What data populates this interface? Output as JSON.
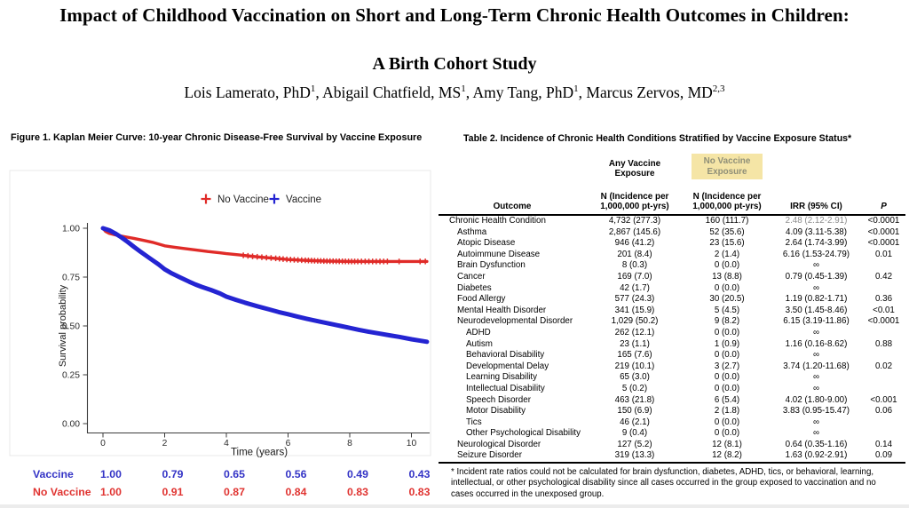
{
  "header": {
    "title_line1": "Impact of Childhood Vaccination on Short and Long-Term Chronic Health Outcomes in Children:",
    "title_line2": "A Birth Cohort Study",
    "authors": [
      {
        "text": "Lois Lamerato, PhD",
        "sup": "1"
      },
      {
        "text": ", Abigail Chatfield, MS",
        "sup": "1"
      },
      {
        "text": ", Amy Tang, PhD",
        "sup": "1"
      },
      {
        "text": ", Marcus Zervos, MD",
        "sup": "2,3"
      }
    ]
  },
  "figure": {
    "caption": "Figure 1. Kaplan Meier Curve: 10-year Chronic Disease-Free Survival by Vaccine Exposure",
    "risk_table": {
      "rows": [
        {
          "label": "Vaccine",
          "color": "#3434C6",
          "values": [
            "1.00",
            "0.79",
            "0.65",
            "0.56",
            "0.49",
            "0.43"
          ]
        },
        {
          "label": "No Vaccine",
          "color": "#E03431",
          "values": [
            "1.00",
            "0.91",
            "0.87",
            "0.84",
            "0.83",
            "0.83"
          ]
        }
      ]
    }
  },
  "chart_data": {
    "type": "line",
    "title": "",
    "xlabel": "Time (years)",
    "ylabel": "Survival probability",
    "xlim": [
      0,
      10.5
    ],
    "ylim": [
      0,
      1.0
    ],
    "grid": false,
    "legend_position": "top-center",
    "xticks": [
      {
        "v": 0,
        "label": "0"
      },
      {
        "v": 2,
        "label": "2"
      },
      {
        "v": 4,
        "label": "4"
      },
      {
        "v": 6,
        "label": "6"
      },
      {
        "v": 8,
        "label": "8"
      },
      {
        "v": 10,
        "label": "10"
      }
    ],
    "yticks": [
      {
        "v": 0.0,
        "label": "0.00"
      },
      {
        "v": 0.25,
        "label": "0.25"
      },
      {
        "v": 0.5,
        "label": "0.50"
      },
      {
        "v": 0.75,
        "label": "0.75"
      },
      {
        "v": 1.0,
        "label": "1.00"
      }
    ],
    "legend": [
      {
        "name": "No Vaccine",
        "color": "#E02B28"
      },
      {
        "name": "Vaccine",
        "color": "#2424D2"
      }
    ],
    "series": [
      {
        "name": "No Vaccine",
        "color": "#E02B28",
        "width": 3.4,
        "points": [
          [
            0,
            1.0
          ],
          [
            0.08,
            0.984
          ],
          [
            0.2,
            0.974
          ],
          [
            0.4,
            0.966
          ],
          [
            0.7,
            0.957
          ],
          [
            1,
            0.948
          ],
          [
            1.3,
            0.938
          ],
          [
            1.6,
            0.928
          ],
          [
            2,
            0.91
          ],
          [
            2.3,
            0.903
          ],
          [
            2.6,
            0.897
          ],
          [
            3,
            0.889
          ],
          [
            3.4,
            0.881
          ],
          [
            3.8,
            0.874
          ],
          [
            4,
            0.87
          ],
          [
            4.4,
            0.864
          ],
          [
            4.8,
            0.857
          ],
          [
            5.2,
            0.851
          ],
          [
            5.6,
            0.846
          ],
          [
            6,
            0.84
          ],
          [
            6.4,
            0.837
          ],
          [
            6.8,
            0.834
          ],
          [
            7.2,
            0.832
          ],
          [
            7.6,
            0.831
          ],
          [
            8,
            0.83
          ],
          [
            8.5,
            0.83
          ],
          [
            9,
            0.83
          ],
          [
            9.5,
            0.83
          ],
          [
            10,
            0.83
          ],
          [
            10.5,
            0.83
          ]
        ],
        "censor_ticks": [
          4.55,
          4.7,
          4.85,
          5.0,
          5.15,
          5.3,
          5.45,
          5.6,
          5.72,
          5.84,
          5.96,
          6.08,
          6.2,
          6.32,
          6.44,
          6.56,
          6.66,
          6.76,
          6.86,
          6.96,
          7.06,
          7.16,
          7.26,
          7.36,
          7.46,
          7.56,
          7.66,
          7.76,
          7.86,
          7.96,
          8.06,
          8.16,
          8.26,
          8.38,
          8.5,
          8.62,
          8.74,
          8.86,
          8.98,
          9.1,
          9.22,
          9.6,
          10.28,
          10.45
        ]
      },
      {
        "name": "Vaccine",
        "color": "#2424D2",
        "width": 5,
        "points": [
          [
            0,
            1.0
          ],
          [
            0.2,
            0.99
          ],
          [
            0.4,
            0.973
          ],
          [
            0.6,
            0.953
          ],
          [
            0.8,
            0.93
          ],
          [
            1,
            0.905
          ],
          [
            1.2,
            0.882
          ],
          [
            1.5,
            0.848
          ],
          [
            1.8,
            0.815
          ],
          [
            2,
            0.79
          ],
          [
            2.2,
            0.772
          ],
          [
            2.5,
            0.748
          ],
          [
            2.8,
            0.726
          ],
          [
            3,
            0.712
          ],
          [
            3.2,
            0.7
          ],
          [
            3.5,
            0.684
          ],
          [
            3.8,
            0.666
          ],
          [
            4,
            0.65
          ],
          [
            4.3,
            0.634
          ],
          [
            4.6,
            0.619
          ],
          [
            5,
            0.601
          ],
          [
            5.4,
            0.584
          ],
          [
            5.7,
            0.571
          ],
          [
            6,
            0.56
          ],
          [
            6.3,
            0.548
          ],
          [
            6.6,
            0.537
          ],
          [
            7,
            0.523
          ],
          [
            7.4,
            0.51
          ],
          [
            7.7,
            0.5
          ],
          [
            8,
            0.49
          ],
          [
            8.3,
            0.48
          ],
          [
            8.6,
            0.471
          ],
          [
            9,
            0.46
          ],
          [
            9.3,
            0.452
          ],
          [
            9.6,
            0.444
          ],
          [
            10,
            0.432
          ],
          [
            10.3,
            0.424
          ],
          [
            10.5,
            0.419
          ]
        ]
      }
    ]
  },
  "table": {
    "title": "Table 2. Incidence of Chronic Health Conditions Stratified by Vaccine Exposure Status*",
    "group_headers": {
      "any": "Any Vaccine Exposure",
      "no": "No Vaccine Exposure"
    },
    "highlight_bg": "#F5E5A6",
    "highlight_text": "#8F8F78",
    "columns": [
      "Outcome",
      "N (Incidence per 1,000,000 pt-yrs)",
      "N (Incidence per 1,000,000 pt-yrs)",
      "IRR (95% CI)",
      "P"
    ],
    "rows": [
      {
        "outcome": "Chronic Health Condition",
        "level": 0,
        "n_any": "4,732 (277.3)",
        "n_no": "160 (111.7)",
        "irr": "2.48 (2.12-2.91)",
        "p": "<0.0001",
        "muted": true
      },
      {
        "outcome": "Asthma",
        "level": 1,
        "n_any": "2,867 (145.6)",
        "n_no": "52 (35.6)",
        "irr": "4.09 (3.11-5.38)",
        "p": "<0.0001"
      },
      {
        "outcome": "Atopic Disease",
        "level": 1,
        "n_any": "946 (41.2)",
        "n_no": "23 (15.6)",
        "irr": "2.64 (1.74-3.99)",
        "p": "<0.0001"
      },
      {
        "outcome": "Autoimmune Disease",
        "level": 1,
        "n_any": "201 (8.4)",
        "n_no": "2 (1.4)",
        "irr": "6.16 (1.53-24.79)",
        "p": "0.01"
      },
      {
        "outcome": "Brain Dysfunction",
        "level": 1,
        "n_any": "8 (0.3)",
        "n_no": "0 (0.0)",
        "irr": "∞",
        "p": ""
      },
      {
        "outcome": "Cancer",
        "level": 1,
        "n_any": "169 (7.0)",
        "n_no": "13 (8.8)",
        "irr": "0.79 (0.45-1.39)",
        "p": "0.42"
      },
      {
        "outcome": "Diabetes",
        "level": 1,
        "n_any": "42 (1.7)",
        "n_no": "0 (0.0)",
        "irr": "∞",
        "p": ""
      },
      {
        "outcome": "Food Allergy",
        "level": 1,
        "n_any": "577 (24.3)",
        "n_no": "30 (20.5)",
        "irr": "1.19 (0.82-1.71)",
        "p": "0.36"
      },
      {
        "outcome": "Mental Health Disorder",
        "level": 1,
        "n_any": "341 (15.9)",
        "n_no": "5 (4.5)",
        "irr": "3.50 (1.45-8.46)",
        "p": "<0.01"
      },
      {
        "outcome": "Neurodevelopmental Disorder",
        "level": 1,
        "n_any": "1,029 (50.2)",
        "n_no": "9 (8.2)",
        "irr": "6.15 (3.19-11.86)",
        "p": "<0.0001"
      },
      {
        "outcome": "ADHD",
        "level": 2,
        "n_any": "262 (12.1)",
        "n_no": "0 (0.0)",
        "irr": "∞",
        "p": ""
      },
      {
        "outcome": "Autism",
        "level": 2,
        "n_any": "23 (1.1)",
        "n_no": "1 (0.9)",
        "irr": "1.16 (0.16-8.62)",
        "p": "0.88"
      },
      {
        "outcome": "Behavioral Disability",
        "level": 2,
        "n_any": "165 (7.6)",
        "n_no": "0 (0.0)",
        "irr": "∞",
        "p": ""
      },
      {
        "outcome": "Developmental Delay",
        "level": 2,
        "n_any": "219 (10.1)",
        "n_no": "3 (2.7)",
        "irr": "3.74 (1.20-11.68)",
        "p": "0.02"
      },
      {
        "outcome": "Learning Disability",
        "level": 2,
        "n_any": "65 (3.0)",
        "n_no": "0 (0.0)",
        "irr": "∞",
        "p": ""
      },
      {
        "outcome": "Intellectual Disability",
        "level": 2,
        "n_any": "5 (0.2)",
        "n_no": "0 (0.0)",
        "irr": "∞",
        "p": ""
      },
      {
        "outcome": "Speech Disorder",
        "level": 2,
        "n_any": "463 (21.8)",
        "n_no": "6 (5.4)",
        "irr": "4.02 (1.80-9.00)",
        "p": "<0.001"
      },
      {
        "outcome": "Motor Disability",
        "level": 2,
        "n_any": "150 (6.9)",
        "n_no": "2 (1.8)",
        "irr": "3.83 (0.95-15.47)",
        "p": "0.06"
      },
      {
        "outcome": "Tics",
        "level": 2,
        "n_any": "46 (2.1)",
        "n_no": "0 (0.0)",
        "irr": "∞",
        "p": ""
      },
      {
        "outcome": "Other Psychological Disability",
        "level": 2,
        "n_any": "9 (0.4)",
        "n_no": "0 (0.0)",
        "irr": "∞",
        "p": ""
      },
      {
        "outcome": "Neurological Disorder",
        "level": 1,
        "n_any": "127 (5.2)",
        "n_no": "12 (8.1)",
        "irr": "0.64 (0.35-1.16)",
        "p": "0.14"
      },
      {
        "outcome": "Seizure Disorder",
        "level": 1,
        "n_any": "319 (13.3)",
        "n_no": "12 (8.2)",
        "irr": "1.63 (0.92-2.91)",
        "p": "0.09"
      }
    ],
    "footnote": "* Incident rate ratios could not be calculated for brain dysfunction, diabetes, ADHD, tics, or behavioral, learning, intellectual, or other psychological disability since all cases occurred in the group exposed to vaccination and no cases occurred in the unexposed group."
  }
}
